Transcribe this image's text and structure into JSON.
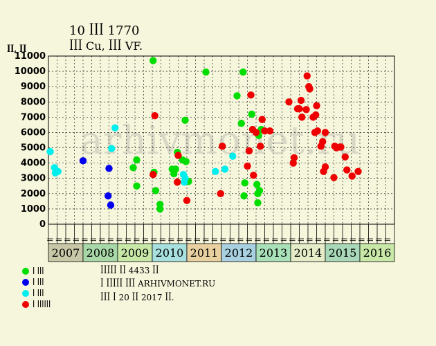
{
  "header": {
    "title": "10 ꟾꟾꟾ 1770",
    "subtitle": "ꟾꟾꟾ Cu, ꟾꟾꟾ VF."
  },
  "watermark": "arhivmonet.ru",
  "info": {
    "line1": "ꟾꟾꟾꟾꟾ ꟾꟾ 4433 ꟾꟾ",
    "line2": "ꟾ ꟾꟾꟾꟾꟾ ꟾꟾꟾ ARHIVMONET.RU",
    "line3": "ꟾꟾꟾ ꟾ 20 ꟾꟾ 2017 ꟾꟾ."
  },
  "chart_data": {
    "type": "scatter",
    "ylabel": "ꟾꟾ, ꟾꟾ",
    "ylim": [
      0,
      11000
    ],
    "yticks": [
      0,
      1000,
      2000,
      3000,
      4000,
      5000,
      6000,
      7000,
      8000,
      9000,
      10000,
      11000
    ],
    "grid": true,
    "x_unit": "quarter",
    "x_start": "2007-Q1",
    "quarter_labels": [
      "ꟾꟾ",
      "ꟾꟾ",
      "ꟾꟾ",
      "ꟾꟾ"
    ],
    "years": [
      {
        "label": "2007",
        "color": "#c8c8a8"
      },
      {
        "label": "2008",
        "color": "#a8d8a8"
      },
      {
        "label": "2009",
        "color": "#c8e8a8"
      },
      {
        "label": "2010",
        "color": "#a8e0e0"
      },
      {
        "label": "2011",
        "color": "#e8d0a0"
      },
      {
        "label": "2012",
        "color": "#a8d0e0"
      },
      {
        "label": "2013",
        "color": "#a8e0b8"
      },
      {
        "label": "2014",
        "color": "#e4ecc8"
      },
      {
        "label": "2015",
        "color": "#a8d8b8"
      },
      {
        "label": "2016",
        "color": "#c8e8a8"
      }
    ],
    "series": [
      {
        "name": "ꟾ ꟾꟾꟾ",
        "color": "#00dd00",
        "points": [
          [
            9.8,
            3700
          ],
          [
            10.2,
            4200
          ],
          [
            10.2,
            2500
          ],
          [
            12.1,
            10700
          ],
          [
            12.2,
            3400
          ],
          [
            12.4,
            2200
          ],
          [
            12.9,
            1300
          ],
          [
            12.9,
            1000
          ],
          [
            14.3,
            3600
          ],
          [
            14.5,
            3300
          ],
          [
            14.7,
            3600
          ],
          [
            14.9,
            4700
          ],
          [
            15.5,
            4200
          ],
          [
            15.8,
            6800
          ],
          [
            15.9,
            4100
          ],
          [
            16.2,
            2800
          ],
          [
            18.2,
            9950
          ],
          [
            21.8,
            8400
          ],
          [
            22.3,
            6600
          ],
          [
            22.5,
            9950
          ],
          [
            22.6,
            1850
          ],
          [
            22.7,
            2700
          ],
          [
            23.5,
            7200
          ],
          [
            24.1,
            2600
          ],
          [
            24.2,
            2000
          ],
          [
            24.2,
            1400
          ],
          [
            24.3,
            5800
          ],
          [
            24.4,
            2200
          ],
          [
            24.6,
            6200
          ]
        ]
      },
      {
        "name": "ꟾ ꟾꟾꟾ",
        "color": "#0000ee",
        "points": [
          [
            4.0,
            4150
          ],
          [
            6.9,
            1850
          ],
          [
            7.0,
            3650
          ],
          [
            7.2,
            1250
          ]
        ]
      },
      {
        "name": "ꟾ ꟾꟾꟾ",
        "color": "#00eeee",
        "points": [
          [
            0.2,
            4750
          ],
          [
            0.7,
            3700
          ],
          [
            0.8,
            3350
          ],
          [
            1.1,
            3450
          ],
          [
            7.3,
            4950
          ],
          [
            7.7,
            6300
          ],
          [
            15.6,
            3250
          ],
          [
            15.7,
            2750
          ],
          [
            15.8,
            3000
          ],
          [
            19.3,
            3450
          ],
          [
            20.4,
            3600
          ],
          [
            21.3,
            4450
          ]
        ]
      },
      {
        "name": "ꟾ ꟾꟾꟾꟾꟾꟾ",
        "color": "#ee0000",
        "points": [
          [
            12.1,
            3250
          ],
          [
            12.3,
            7100
          ],
          [
            14.9,
            2750
          ],
          [
            15.0,
            4500
          ],
          [
            16.0,
            1550
          ],
          [
            19.9,
            2000
          ],
          [
            20.1,
            5100
          ],
          [
            23.0,
            3800
          ],
          [
            23.2,
            4800
          ],
          [
            23.4,
            8450
          ],
          [
            23.6,
            6200
          ],
          [
            23.7,
            3200
          ],
          [
            24.0,
            6000
          ],
          [
            24.5,
            5100
          ],
          [
            24.7,
            6850
          ],
          [
            25.0,
            6100
          ],
          [
            25.6,
            6100
          ],
          [
            27.8,
            8000
          ],
          [
            28.3,
            4000
          ],
          [
            28.4,
            4350
          ],
          [
            28.8,
            7550
          ],
          [
            29.0,
            7550
          ],
          [
            29.2,
            8100
          ],
          [
            29.3,
            7000
          ],
          [
            29.8,
            7500
          ],
          [
            29.9,
            9700
          ],
          [
            30.1,
            9000
          ],
          [
            30.2,
            8850
          ],
          [
            30.6,
            7000
          ],
          [
            30.8,
            6000
          ],
          [
            30.9,
            7150
          ],
          [
            31.0,
            7750
          ],
          [
            31.1,
            6100
          ],
          [
            31.5,
            5100
          ],
          [
            31.7,
            5400
          ],
          [
            31.8,
            3450
          ],
          [
            32.0,
            6000
          ],
          [
            32.0,
            3750
          ],
          [
            33.0,
            3050
          ],
          [
            33.1,
            5100
          ],
          [
            33.3,
            5000
          ],
          [
            33.7,
            5050
          ],
          [
            33.8,
            5050
          ],
          [
            34.3,
            4400
          ],
          [
            34.5,
            3550
          ],
          [
            35.1,
            3150
          ],
          [
            35.8,
            3450
          ]
        ]
      }
    ]
  }
}
